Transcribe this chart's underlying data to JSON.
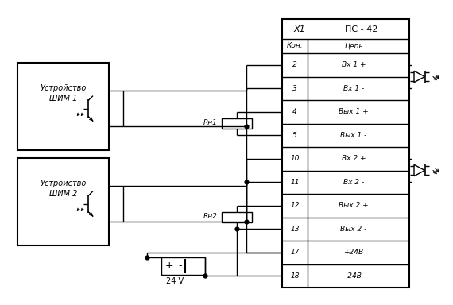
{
  "title": "ПС - 42",
  "connector_label": "X1",
  "bg_color": "#ffffff",
  "line_color": "#000000",
  "shim1_label1": "Устройство",
  "shim1_label2": "ШИМ 1",
  "shim2_label1": "Устройство",
  "shim2_label2": "ШИМ 2",
  "voltage_label": "24 V",
  "rh1_label": "Rн1",
  "rh2_label": "Rн2",
  "kon_label": "Кон.",
  "tsep_label": "Цепь",
  "rows": [
    {
      "num": "2",
      "name": "Вх 1 +"
    },
    {
      "num": "3",
      "name": "Вх 1 -"
    },
    {
      "num": "4",
      "name": "Вых 1 +"
    },
    {
      "num": "5",
      "name": "Вых 1 -"
    },
    {
      "num": "10",
      "name": "Вх 2 +"
    },
    {
      "num": "11",
      "name": "Вх 2 -"
    },
    {
      "num": "12",
      "name": "Вых 2 +"
    },
    {
      "num": "13",
      "name": "Вых 2 -"
    },
    {
      "num": "17",
      "name": "+24В"
    },
    {
      "num": "18",
      "name": "-24В"
    }
  ],
  "figsize": [
    5.7,
    3.84
  ],
  "dpi": 100
}
